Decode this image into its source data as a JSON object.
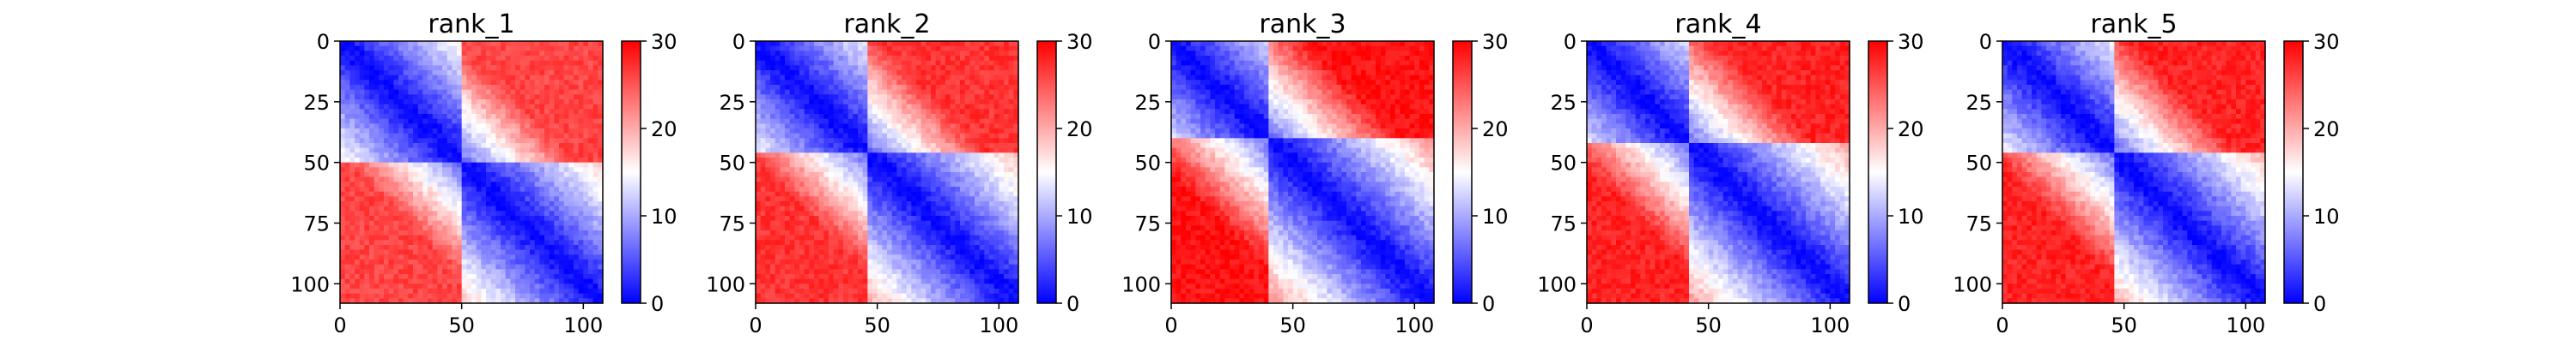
{
  "chart_data": [
    {
      "type": "heatmap",
      "title": "rank_1",
      "xlabel": "",
      "ylabel": "",
      "xlim": [
        0,
        108
      ],
      "ylim": [
        108,
        0
      ],
      "x_ticks": [
        0,
        50,
        100
      ],
      "y_ticks": [
        0,
        25,
        50,
        75,
        100
      ],
      "colorbar": {
        "ticks": [
          0,
          10,
          20,
          30
        ],
        "range": [
          0,
          30
        ],
        "colormap": "bwr"
      },
      "description_values": {
        "diagonal": 0,
        "block_boundaries": [
          50
        ],
        "far_corner_value": 26
      }
    },
    {
      "type": "heatmap",
      "title": "rank_2",
      "xlabel": "",
      "ylabel": "",
      "xlim": [
        0,
        108
      ],
      "ylim": [
        108,
        0
      ],
      "x_ticks": [
        0,
        50,
        100
      ],
      "y_ticks": [
        0,
        25,
        50,
        75,
        100
      ],
      "colorbar": {
        "ticks": [
          0,
          10,
          20,
          30
        ],
        "range": [
          0,
          30
        ],
        "colormap": "bwr"
      },
      "description_values": {
        "diagonal": 0,
        "block_boundaries": [
          45
        ],
        "far_corner_value": 27
      }
    },
    {
      "type": "heatmap",
      "title": "rank_3",
      "xlabel": "",
      "ylabel": "",
      "xlim": [
        0,
        108
      ],
      "ylim": [
        108,
        0
      ],
      "x_ticks": [
        0,
        50,
        100
      ],
      "y_ticks": [
        0,
        25,
        50,
        75,
        100
      ],
      "colorbar": {
        "ticks": [
          0,
          10,
          20,
          30
        ],
        "range": [
          0,
          30
        ],
        "colormap": "bwr"
      },
      "description_values": {
        "diagonal": 0,
        "block_boundaries": [
          40
        ],
        "far_corner_value": 29
      }
    },
    {
      "type": "heatmap",
      "title": "rank_4",
      "xlabel": "",
      "ylabel": "",
      "xlim": [
        0,
        108
      ],
      "ylim": [
        108,
        0
      ],
      "x_ticks": [
        0,
        50,
        100
      ],
      "y_ticks": [
        0,
        25,
        50,
        75,
        100
      ],
      "colorbar": {
        "ticks": [
          0,
          10,
          20,
          30
        ],
        "range": [
          0,
          30
        ],
        "colormap": "bwr"
      },
      "description_values": {
        "diagonal": 0,
        "block_boundaries": [
          42
        ],
        "far_corner_value": 28
      }
    },
    {
      "type": "heatmap",
      "title": "rank_5",
      "xlabel": "",
      "ylabel": "",
      "xlim": [
        0,
        108
      ],
      "ylim": [
        108,
        0
      ],
      "x_ticks": [
        0,
        50,
        100
      ],
      "y_ticks": [
        0,
        25,
        50,
        75,
        100
      ],
      "colorbar": {
        "ticks": [
          0,
          10,
          20,
          30
        ],
        "range": [
          0,
          30
        ],
        "colormap": "bwr"
      },
      "description_values": {
        "diagonal": 0,
        "block_boundaries": [
          45
        ],
        "far_corner_value": 28
      }
    }
  ],
  "colors": {
    "low": "#0000ff",
    "mid": "#ffffff",
    "high": "#ff0000",
    "axis": "#000000"
  }
}
